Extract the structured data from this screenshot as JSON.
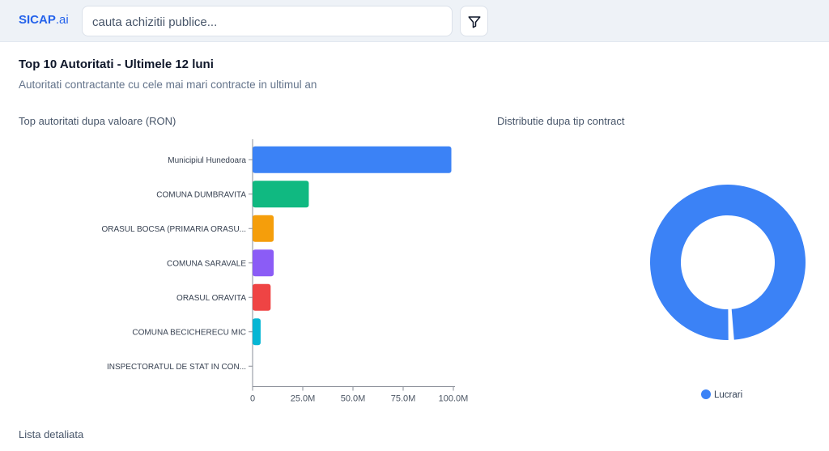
{
  "header": {
    "logo_main": "SICAP",
    "logo_suffix": ".ai",
    "search_placeholder": "cauta achizitii publice...",
    "filter_icon": "filter-icon"
  },
  "page": {
    "title": "Top 10 Autoritati - Ultimele 12 luni",
    "subtitle": "Autoritati contractante cu cele mai mari contracte in ultimul an",
    "bar_section_title": "Top autoritati dupa valoare (RON)",
    "pie_section_title": "Distributie dupa tip contract",
    "list_title": "Lista detaliata"
  },
  "chart_data": [
    {
      "type": "bar",
      "orientation": "horizontal",
      "categories": [
        "Municipiul Hunedoara",
        "COMUNA DUMBRAVITA",
        "ORASUL BOCSA (PRIMARIA ORASU...",
        "COMUNA SARAVALE",
        "ORASUL ORAVITA",
        "COMUNA BECICHERECU MIC",
        "INSPECTORATUL DE STAT IN CON..."
      ],
      "values": [
        99000000,
        28000000,
        10500000,
        10500000,
        9000000,
        4000000,
        0
      ],
      "colors": [
        "#3b82f6",
        "#10b981",
        "#f59e0b",
        "#8b5cf6",
        "#ef4444",
        "#06b6d4",
        "#ec4899"
      ],
      "xlim": [
        0,
        100000000
      ],
      "xticks": [
        0,
        25000000,
        50000000,
        75000000,
        100000000
      ],
      "xtick_labels": [
        "0",
        "25.0M",
        "50.0M",
        "75.0M",
        "100.0M"
      ],
      "grid": false
    },
    {
      "type": "pie",
      "variant": "donut",
      "labels": [
        "Lucrari",
        ""
      ],
      "values": [
        99.3,
        0.7
      ],
      "colors": [
        "#3b82f6",
        "#3b82f6"
      ],
      "legend": [
        "Lucrari"
      ],
      "legend_position": "bottom"
    }
  ]
}
